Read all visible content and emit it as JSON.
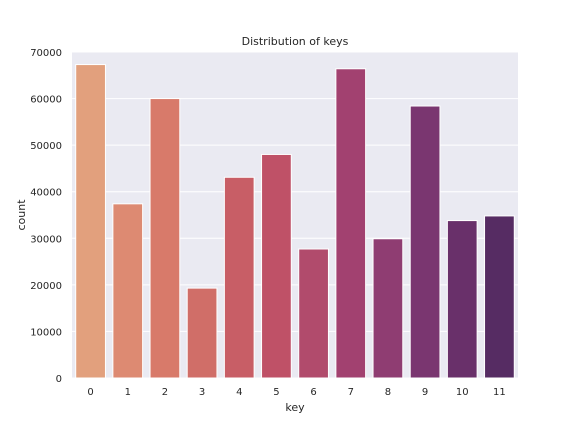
{
  "chart_data": {
    "type": "bar",
    "title": "Distribution of keys",
    "xlabel": "key",
    "ylabel": "count",
    "categories": [
      "0",
      "1",
      "2",
      "3",
      "4",
      "5",
      "6",
      "7",
      "8",
      "9",
      "10",
      "11"
    ],
    "values": [
      67300,
      37400,
      60000,
      19300,
      43100,
      48000,
      27700,
      66400,
      29900,
      58400,
      33800,
      34800
    ],
    "ylim": [
      0,
      70000
    ],
    "yticks": [
      "0",
      "10000",
      "20000",
      "30000",
      "40000",
      "50000",
      "60000",
      "70000"
    ],
    "grid": true,
    "background": "#eaeaf2",
    "colors": [
      "#e2a07d",
      "#dd8a72",
      "#d87a6a",
      "#d06e68",
      "#c85e66",
      "#bf5167",
      "#b14b6c",
      "#a24170",
      "#8f3d72",
      "#7a3670",
      "#69306a",
      "#562c63"
    ]
  }
}
